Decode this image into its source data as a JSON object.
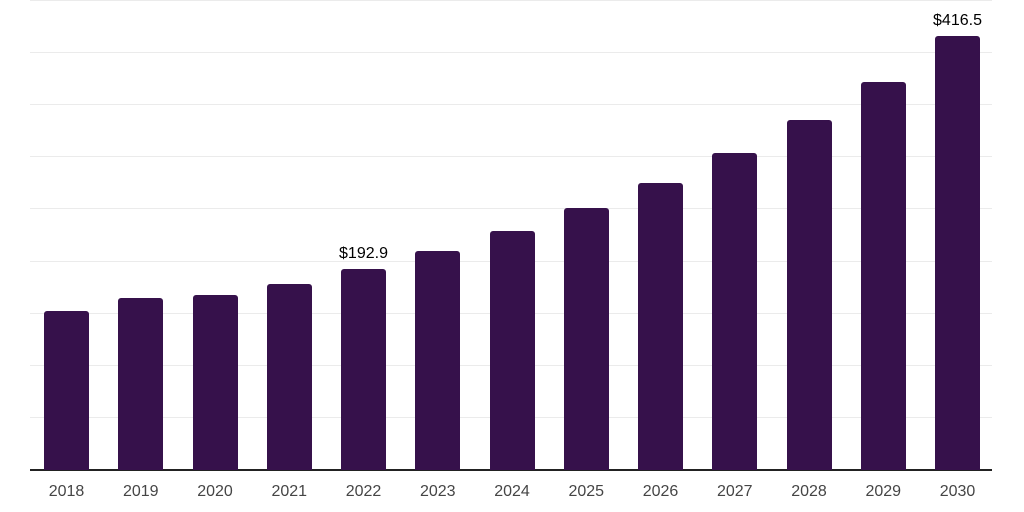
{
  "chart_data": {
    "type": "bar",
    "categories": [
      "2018",
      "2019",
      "2020",
      "2021",
      "2022",
      "2023",
      "2024",
      "2025",
      "2026",
      "2027",
      "2028",
      "2029",
      "2030"
    ],
    "values": [
      152.2,
      164.8,
      167.6,
      178.1,
      192.9,
      209.8,
      228.9,
      251.5,
      275.8,
      304.6,
      336.2,
      372.5,
      416.5
    ],
    "data_labels": {
      "2022": "$192.9",
      "2030": "$416.5"
    },
    "title": "",
    "xlabel": "",
    "ylabel": "",
    "ylim": [
      0,
      450
    ],
    "grid_step": 50,
    "grid": "horizontal-only",
    "y_tick_labels_shown": false,
    "legend": "none",
    "colors": {
      "bar": "#36114B",
      "gridline": "#ebebeb",
      "axis_line": "#222222",
      "tick_label": "#454545",
      "data_label": "#000000",
      "background": "#ffffff"
    }
  }
}
